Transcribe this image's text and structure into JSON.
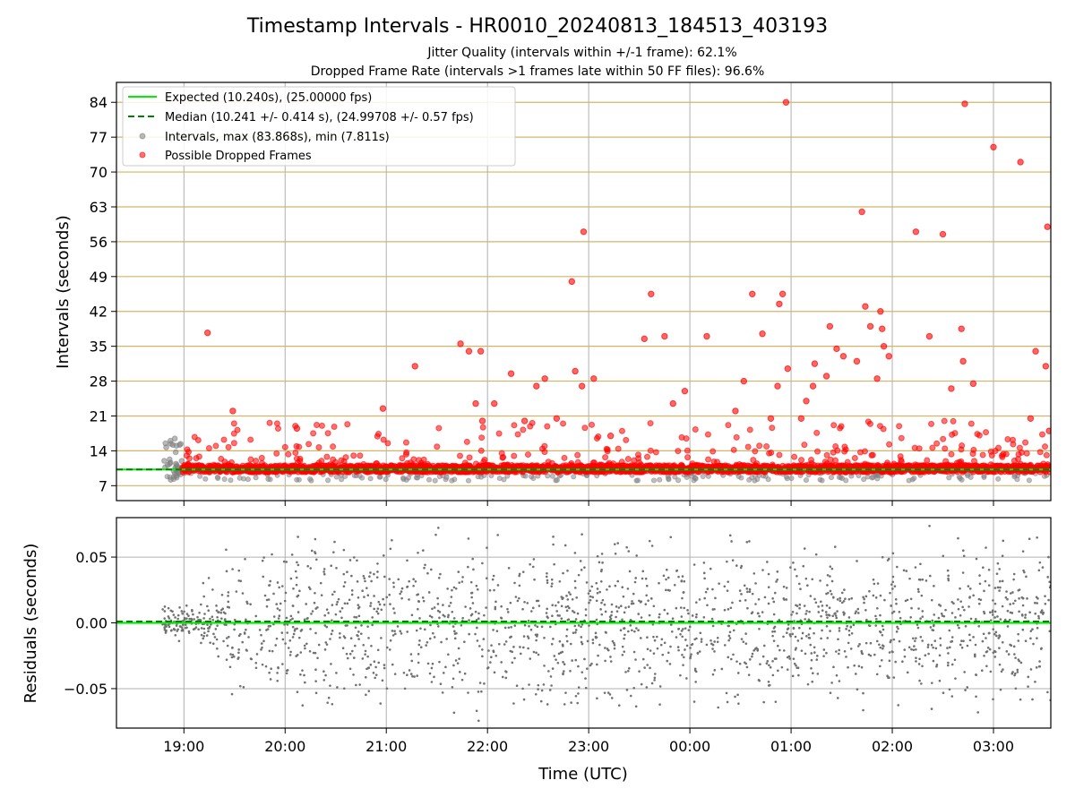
{
  "chart_data": [
    {
      "type": "scatter",
      "title": "Timestamp Intervals - HR0010_20240813_184513_403193",
      "subtitle_lines": [
        "Jitter Quality (intervals within +/-1 frame): 62.1%",
        "Dropped Frame Rate (intervals >1 frames late within 50 FF files): 96.6%"
      ],
      "xlabel": "",
      "ylabel": "Intervals (seconds)",
      "xlim": [
        "18:20",
        "03:34"
      ],
      "ylim": [
        4.0,
        88.0
      ],
      "yticks": [
        7,
        14,
        21,
        28,
        35,
        42,
        49,
        56,
        63,
        70,
        77,
        84
      ],
      "grid": "on",
      "legend_position": "top-left",
      "reference_lines": [
        {
          "name": "Expected (10.240s), (25.00000 fps)",
          "y": 10.24,
          "style": "solid",
          "color": "#00ee00"
        },
        {
          "name": "Median (10.241 +/- 0.414 s), (24.99708 +/- 0.57 fps)",
          "y": 10.241,
          "style": "dashed",
          "color": "#008000"
        }
      ],
      "series": [
        {
          "name": "Intervals, max (83.868s), min (7.811s)",
          "color": "#808080"
        },
        {
          "name": "Possible Dropped Frames",
          "color": "#ff0000"
        }
      ],
      "dropped_frame_points": [
        [
          "19:14",
          37.7
        ],
        [
          "19:29",
          22.0
        ],
        [
          "20:07",
          18.5
        ],
        [
          "20:58",
          22.5
        ],
        [
          "21:17",
          31.0
        ],
        [
          "21:44",
          35.5
        ],
        [
          "21:49",
          34.0
        ],
        [
          "21:53",
          23.5
        ],
        [
          "21:56",
          34.0
        ],
        [
          "21:57",
          20.0
        ],
        [
          "22:04",
          23.5
        ],
        [
          "22:14",
          29.5
        ],
        [
          "22:22",
          20.0
        ],
        [
          "22:29",
          27.0
        ],
        [
          "22:34",
          28.5
        ],
        [
          "22:41",
          20.5
        ],
        [
          "22:50",
          48.0
        ],
        [
          "22:52",
          30.0
        ],
        [
          "22:56",
          27.0
        ],
        [
          "22:57",
          58.0
        ],
        [
          "23:03",
          28.5
        ],
        [
          "23:13",
          17.0
        ],
        [
          "23:33",
          36.5
        ],
        [
          "23:37",
          45.5
        ],
        [
          "23:45",
          37.0
        ],
        [
          "23:50",
          23.5
        ],
        [
          "23:57",
          26.0
        ],
        [
          "00:10",
          37.0
        ],
        [
          "00:27",
          22.0
        ],
        [
          "00:32",
          28.0
        ],
        [
          "00:37",
          45.5
        ],
        [
          "00:43",
          37.5
        ],
        [
          "00:48",
          20.5
        ],
        [
          "00:52",
          27.0
        ],
        [
          "00:53",
          43.5
        ],
        [
          "00:55",
          45.5
        ],
        [
          "00:57",
          84.0
        ],
        [
          "00:58",
          30.5
        ],
        [
          "01:06",
          20.5
        ],
        [
          "01:09",
          24.0
        ],
        [
          "01:13",
          27.0
        ],
        [
          "01:14",
          31.5
        ],
        [
          "01:21",
          29.0
        ],
        [
          "01:23",
          39.0
        ],
        [
          "01:27",
          34.5
        ],
        [
          "01:31",
          33.0
        ],
        [
          "01:39",
          32.0
        ],
        [
          "01:42",
          62.0
        ],
        [
          "01:44",
          43.0
        ],
        [
          "01:47",
          39.0
        ],
        [
          "01:51",
          28.5
        ],
        [
          "01:53",
          42.0
        ],
        [
          "01:54",
          38.5
        ],
        [
          "01:55",
          35.0
        ],
        [
          "01:58",
          33.0
        ],
        [
          "02:14",
          58.0
        ],
        [
          "02:22",
          37.0
        ],
        [
          "02:30",
          57.5
        ],
        [
          "02:35",
          26.5
        ],
        [
          "02:41",
          38.5
        ],
        [
          "02:42",
          32.0
        ],
        [
          "02:43",
          83.7
        ],
        [
          "02:48",
          27.5
        ],
        [
          "03:00",
          75.0
        ],
        [
          "03:16",
          72.0
        ],
        [
          "03:22",
          20.5
        ],
        [
          "03:25",
          34.0
        ],
        [
          "03:31",
          31.0
        ],
        [
          "03:32",
          59.0
        ],
        [
          "03:33",
          18.0
        ]
      ],
      "xticks": [
        "19:00",
        "20:00",
        "21:00",
        "22:00",
        "23:00",
        "00:00",
        "01:00",
        "02:00",
        "03:00"
      ]
    },
    {
      "type": "scatter",
      "xlabel": "Time (UTC)",
      "ylabel": "Residuals (seconds)",
      "xlim": [
        "18:20",
        "03:34"
      ],
      "ylim": [
        -0.08,
        0.08
      ],
      "yticks": [
        -0.05,
        0.0,
        0.05
      ],
      "ytick_labels": [
        "−0.05",
        "0.00",
        "0.05"
      ],
      "xticks": [
        "19:00",
        "20:00",
        "21:00",
        "22:00",
        "23:00",
        "00:00",
        "01:00",
        "02:00",
        "03:00"
      ],
      "grid": "on",
      "reference_lines": [
        {
          "y": 0.0,
          "style": "solid",
          "color": "#00ee00"
        },
        {
          "y": 0.001,
          "style": "dashed",
          "color": "#008000"
        }
      ],
      "series": [
        {
          "color": "#808080"
        }
      ]
    }
  ],
  "colors": {
    "gridline": "#b0b0b0",
    "ygrid_top": "#d4b468",
    "gray": "#808080",
    "red": "#ff0000",
    "expected": "#00ee00",
    "median": "#008000"
  }
}
